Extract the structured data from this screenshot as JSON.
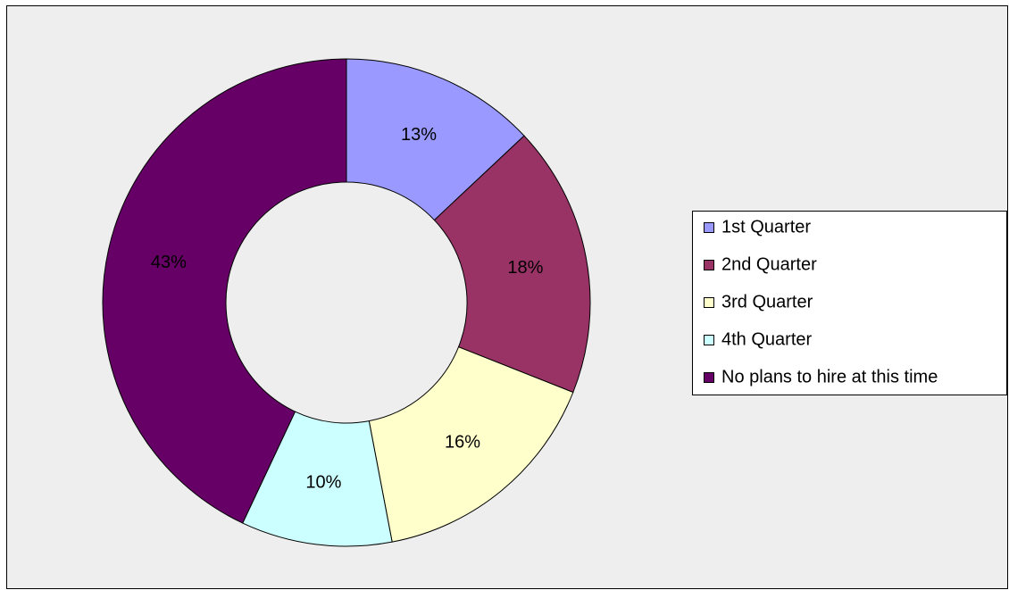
{
  "chart_data": {
    "type": "donut",
    "categories": [
      "1st Quarter",
      "2nd Quarter",
      "3rd Quarter",
      "4th Quarter",
      "No plans to hire at this time"
    ],
    "values": [
      13,
      18,
      16,
      10,
      43
    ],
    "value_labels": [
      "13%",
      "18%",
      "16%",
      "10%",
      "43%"
    ],
    "colors": [
      "#9999ff",
      "#993366",
      "#ffffcc",
      "#ccffff",
      "#660066"
    ],
    "legend": "right"
  }
}
